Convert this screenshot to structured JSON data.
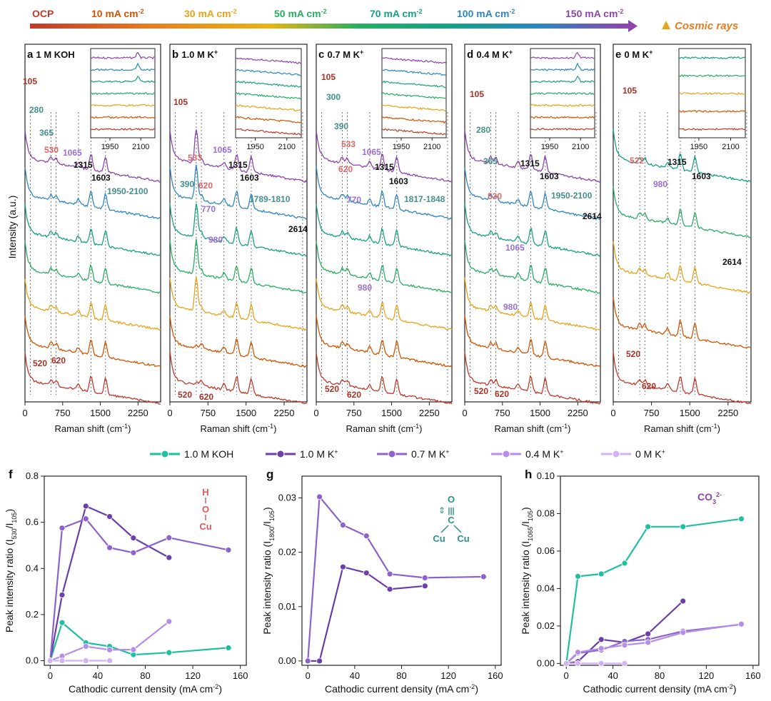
{
  "legend_top": {
    "conditions": [
      {
        "label": "OCP",
        "color": "#c0392b"
      },
      {
        "label": "10 mA cm",
        "sup": "-2",
        "color": "#d35400"
      },
      {
        "label": "30 mA cm",
        "sup": "-2",
        "color": "#e8a317"
      },
      {
        "label": "50 mA cm",
        "sup": "-2",
        "color": "#27ae60"
      },
      {
        "label": "70 mA cm",
        "sup": "-2",
        "color": "#16a085"
      },
      {
        "label": "100 mA cm",
        "sup": "-2",
        "color": "#2e86c1"
      },
      {
        "label": "150 mA cm",
        "sup": "-2",
        "color": "#8e44ad"
      }
    ],
    "cosmic": "Cosmic rays",
    "cosmic_color": "#e67e22"
  },
  "spectra_panels": [
    {
      "letter": "a",
      "title": "1 M KOH",
      "ticks": [
        "0",
        "750",
        "1500",
        "2250"
      ],
      "labels": [
        [
          "105",
          "#a93226"
        ],
        [
          "280",
          "#45908a"
        ],
        [
          "365",
          "#45908a"
        ],
        [
          "530",
          "#e06666"
        ],
        [
          "1065",
          "#9b6fd6"
        ],
        [
          "1315",
          "#111111"
        ],
        [
          "1603",
          "#111111"
        ],
        [
          "1950-2100",
          "#45908a"
        ],
        [
          "520",
          "#a93226"
        ],
        [
          "620",
          "#a93226"
        ]
      ]
    },
    {
      "letter": "b",
      "title": "1.0 M K",
      "sup": "+",
      "ticks": [
        "0",
        "750",
        "1500",
        "2250"
      ],
      "labels": [
        [
          "105",
          "#a93226"
        ],
        [
          "533",
          "#e06666"
        ],
        [
          "1065",
          "#9b6fd6"
        ],
        [
          "1315",
          "#111111"
        ],
        [
          "390",
          "#45908a"
        ],
        [
          "620",
          "#e06666"
        ],
        [
          "1603",
          "#111111"
        ],
        [
          "770",
          "#9b6fd6"
        ],
        [
          "1789-1810",
          "#45908a"
        ],
        [
          "980",
          "#9b6fd6"
        ],
        [
          "2614",
          "#111111"
        ],
        [
          "520",
          "#a93226"
        ],
        [
          "620",
          "#a93226"
        ]
      ]
    },
    {
      "letter": "c",
      "title": "0.7 M K",
      "sup": "+",
      "ticks": [
        "0",
        "750",
        "1500",
        "2250"
      ],
      "labels": [
        [
          "105",
          "#a93226"
        ],
        [
          "300",
          "#45908a"
        ],
        [
          "390",
          "#45908a"
        ],
        [
          "533",
          "#e06666"
        ],
        [
          "1065",
          "#9b6fd6"
        ],
        [
          "620",
          "#e06666"
        ],
        [
          "1315",
          "#111111"
        ],
        [
          "1603",
          "#111111"
        ],
        [
          "770",
          "#9b6fd6"
        ],
        [
          "1817-1848",
          "#45908a"
        ],
        [
          "980",
          "#9b6fd6"
        ],
        [
          "520",
          "#a93226"
        ],
        [
          "620",
          "#a93226"
        ]
      ]
    },
    {
      "letter": "d",
      "title": "0.4 M K",
      "sup": "+",
      "ticks": [
        "0",
        "750",
        "1500",
        "2250"
      ],
      "labels": [
        [
          "105",
          "#a93226"
        ],
        [
          "280",
          "#45908a"
        ],
        [
          "365",
          "#45908a"
        ],
        [
          "1315",
          "#111111"
        ],
        [
          "1603",
          "#111111"
        ],
        [
          "530",
          "#e06666"
        ],
        [
          "1950-2100",
          "#45908a"
        ],
        [
          "1065",
          "#9b6fd6"
        ],
        [
          "2614",
          "#111111"
        ],
        [
          "980",
          "#9b6fd6"
        ],
        [
          "520",
          "#a93226"
        ],
        [
          "620",
          "#a93226"
        ]
      ]
    },
    {
      "letter": "e",
      "title": "0 M K",
      "sup": "+",
      "ticks": [
        "0",
        "750",
        "1500",
        "2250"
      ],
      "labels": [
        [
          "105",
          "#a93226"
        ],
        [
          "522",
          "#e06666"
        ],
        [
          "1315",
          "#111111"
        ],
        [
          "1603",
          "#111111"
        ],
        [
          "980",
          "#9b6fd6"
        ],
        [
          "2614",
          "#111111"
        ],
        [
          "520",
          "#a93226"
        ],
        [
          "620",
          "#a93226"
        ]
      ]
    }
  ],
  "spectra_axes": {
    "xlabel": "Raman shift (cm",
    "xlabel_sup": "-1",
    "xlabel_end": ")",
    "ylabel": "Intensity (a.u.)",
    "inset_ticks": [
      "1950",
      "2100"
    ]
  },
  "chart_data": [
    {
      "type": "line",
      "panel": "f",
      "xlabel": "Cathodic current density (mA cm",
      "xlabel_sup": "-2",
      "xlabel_end": ")",
      "ylabel": "Peak intensity ratio (I",
      "ylabel_sub1": "530",
      "ylabel_mid": "/I",
      "ylabel_sub2": "105",
      "ylabel_end": ")",
      "xlim": [
        -5,
        165
      ],
      "ylim": [
        -0.02,
        0.8
      ],
      "xticks": [
        0,
        40,
        80,
        120,
        160
      ],
      "yticks": [
        0.0,
        0.2,
        0.4,
        0.6,
        0.8
      ],
      "annotation": "H-O-Cu",
      "annotation_color": "#e05a5a",
      "series": [
        {
          "name": "1.0 M KOH",
          "color": "#1fbf9f",
          "x": [
            0,
            10,
            30,
            50,
            70,
            100,
            150
          ],
          "y": [
            0.0,
            0.165,
            0.078,
            0.062,
            0.026,
            0.035,
            0.056
          ]
        },
        {
          "name": "1.0 M K+",
          "color": "#6b3fa8",
          "x": [
            0,
            10,
            30,
            50,
            70,
            100
          ],
          "y": [
            0.0,
            0.285,
            0.67,
            0.625,
            0.532,
            0.447
          ]
        },
        {
          "name": "0.7 M K+",
          "color": "#8c63cc",
          "x": [
            0,
            10,
            30,
            50,
            70,
            100,
            150
          ],
          "y": [
            0.0,
            0.575,
            0.615,
            0.49,
            0.468,
            0.533,
            0.48
          ]
        },
        {
          "name": "0.4 M K+",
          "color": "#b48ee8",
          "x": [
            0,
            10,
            30,
            50,
            70,
            100
          ],
          "y": [
            0.0,
            0.02,
            0.062,
            0.047,
            0.048,
            0.17
          ]
        },
        {
          "name": "0 M K+",
          "color": "#d2b3f2",
          "x": [
            0,
            10,
            30,
            50
          ],
          "y": [
            0.0,
            0.0,
            0.0,
            0.0
          ]
        }
      ]
    },
    {
      "type": "line",
      "panel": "g",
      "xlabel": "Cathodic current density (mA cm",
      "xlabel_sup": "-2",
      "xlabel_end": ")",
      "ylabel": "Peak intensity ratio (I",
      "ylabel_sub1": "1800",
      "ylabel_mid": "/I",
      "ylabel_sub2": "105",
      "ylabel_end": ")",
      "xlim": [
        -5,
        165
      ],
      "ylim": [
        -0.0008,
        0.034
      ],
      "xticks": [
        0,
        40,
        80,
        120,
        160
      ],
      "yticks": [
        0.0,
        0.01,
        0.02,
        0.03
      ],
      "annotation": "C≡O on Cu-Cu",
      "annotation_color": "#2f8f8a",
      "series": [
        {
          "name": "1.0 M K+",
          "color": "#6b3fa8",
          "x": [
            0,
            10,
            30,
            50,
            70,
            100
          ],
          "y": [
            0.0,
            0.0,
            0.0173,
            0.0162,
            0.0132,
            0.0138
          ]
        },
        {
          "name": "0.7 M K+",
          "color": "#8c63cc",
          "x": [
            0,
            10,
            30,
            50,
            70,
            100,
            150
          ],
          "y": [
            0.0,
            0.0302,
            0.025,
            0.023,
            0.016,
            0.0153,
            0.0155
          ]
        }
      ]
    },
    {
      "type": "line",
      "panel": "h",
      "xlabel": "Cathodic current density (mA cm",
      "xlabel_sup": "-2",
      "xlabel_end": ")",
      "ylabel": "Peak intensity ratio (I",
      "ylabel_sub1": "1065",
      "ylabel_mid": "/I",
      "ylabel_sub2": "105",
      "ylabel_end": ")",
      "xlim": [
        -5,
        165
      ],
      "ylim": [
        -0.001,
        0.1
      ],
      "xticks": [
        0,
        40,
        80,
        120,
        160
      ],
      "yticks": [
        0.0,
        0.02,
        0.04,
        0.06,
        0.08,
        0.1
      ],
      "annotation": "CO",
      "annotation_sub": "3",
      "annotation_sup": "2-",
      "annotation_color": "#8e44ad",
      "series": [
        {
          "name": "1.0 M KOH",
          "color": "#1fbf9f",
          "x": [
            0,
            10,
            30,
            50,
            70,
            100,
            150
          ],
          "y": [
            0.0,
            0.0465,
            0.0478,
            0.0535,
            0.073,
            0.073,
            0.0772
          ]
        },
        {
          "name": "1.0 M K+",
          "color": "#6b3fa8",
          "x": [
            0,
            10,
            30,
            50,
            70,
            100
          ],
          "y": [
            0.0,
            0.001,
            0.0128,
            0.0112,
            0.0158,
            0.0333
          ]
        },
        {
          "name": "0.7 M K+",
          "color": "#8c63cc",
          "x": [
            0,
            10,
            30,
            50,
            70,
            100,
            150
          ],
          "y": [
            0.0,
            0.0055,
            0.0072,
            0.0118,
            0.0128,
            0.0172,
            0.0208
          ]
        },
        {
          "name": "0.4 M K+",
          "color": "#b48ee8",
          "x": [
            0,
            10,
            30,
            50,
            70,
            100,
            150
          ],
          "y": [
            0.0,
            0.006,
            0.008,
            0.0098,
            0.0112,
            0.0165,
            0.021
          ]
        },
        {
          "name": "0 M K+",
          "color": "#d2b3f2",
          "x": [
            0,
            10,
            30,
            50
          ],
          "y": [
            0.0,
            0.0,
            0.0,
            0.0
          ]
        }
      ]
    }
  ],
  "legend_mid": [
    {
      "label": "1.0 M KOH",
      "color": "#1fbf9f"
    },
    {
      "label": "1.0 M K",
      "sup": "+",
      "color": "#6b3fa8"
    },
    {
      "label": "0.7 M K",
      "sup": "+",
      "color": "#8c63cc"
    },
    {
      "label": "0.4 M K",
      "sup": "+",
      "color": "#b48ee8"
    },
    {
      "label": "0 M K",
      "sup": "+",
      "color": "#d2b3f2"
    }
  ]
}
